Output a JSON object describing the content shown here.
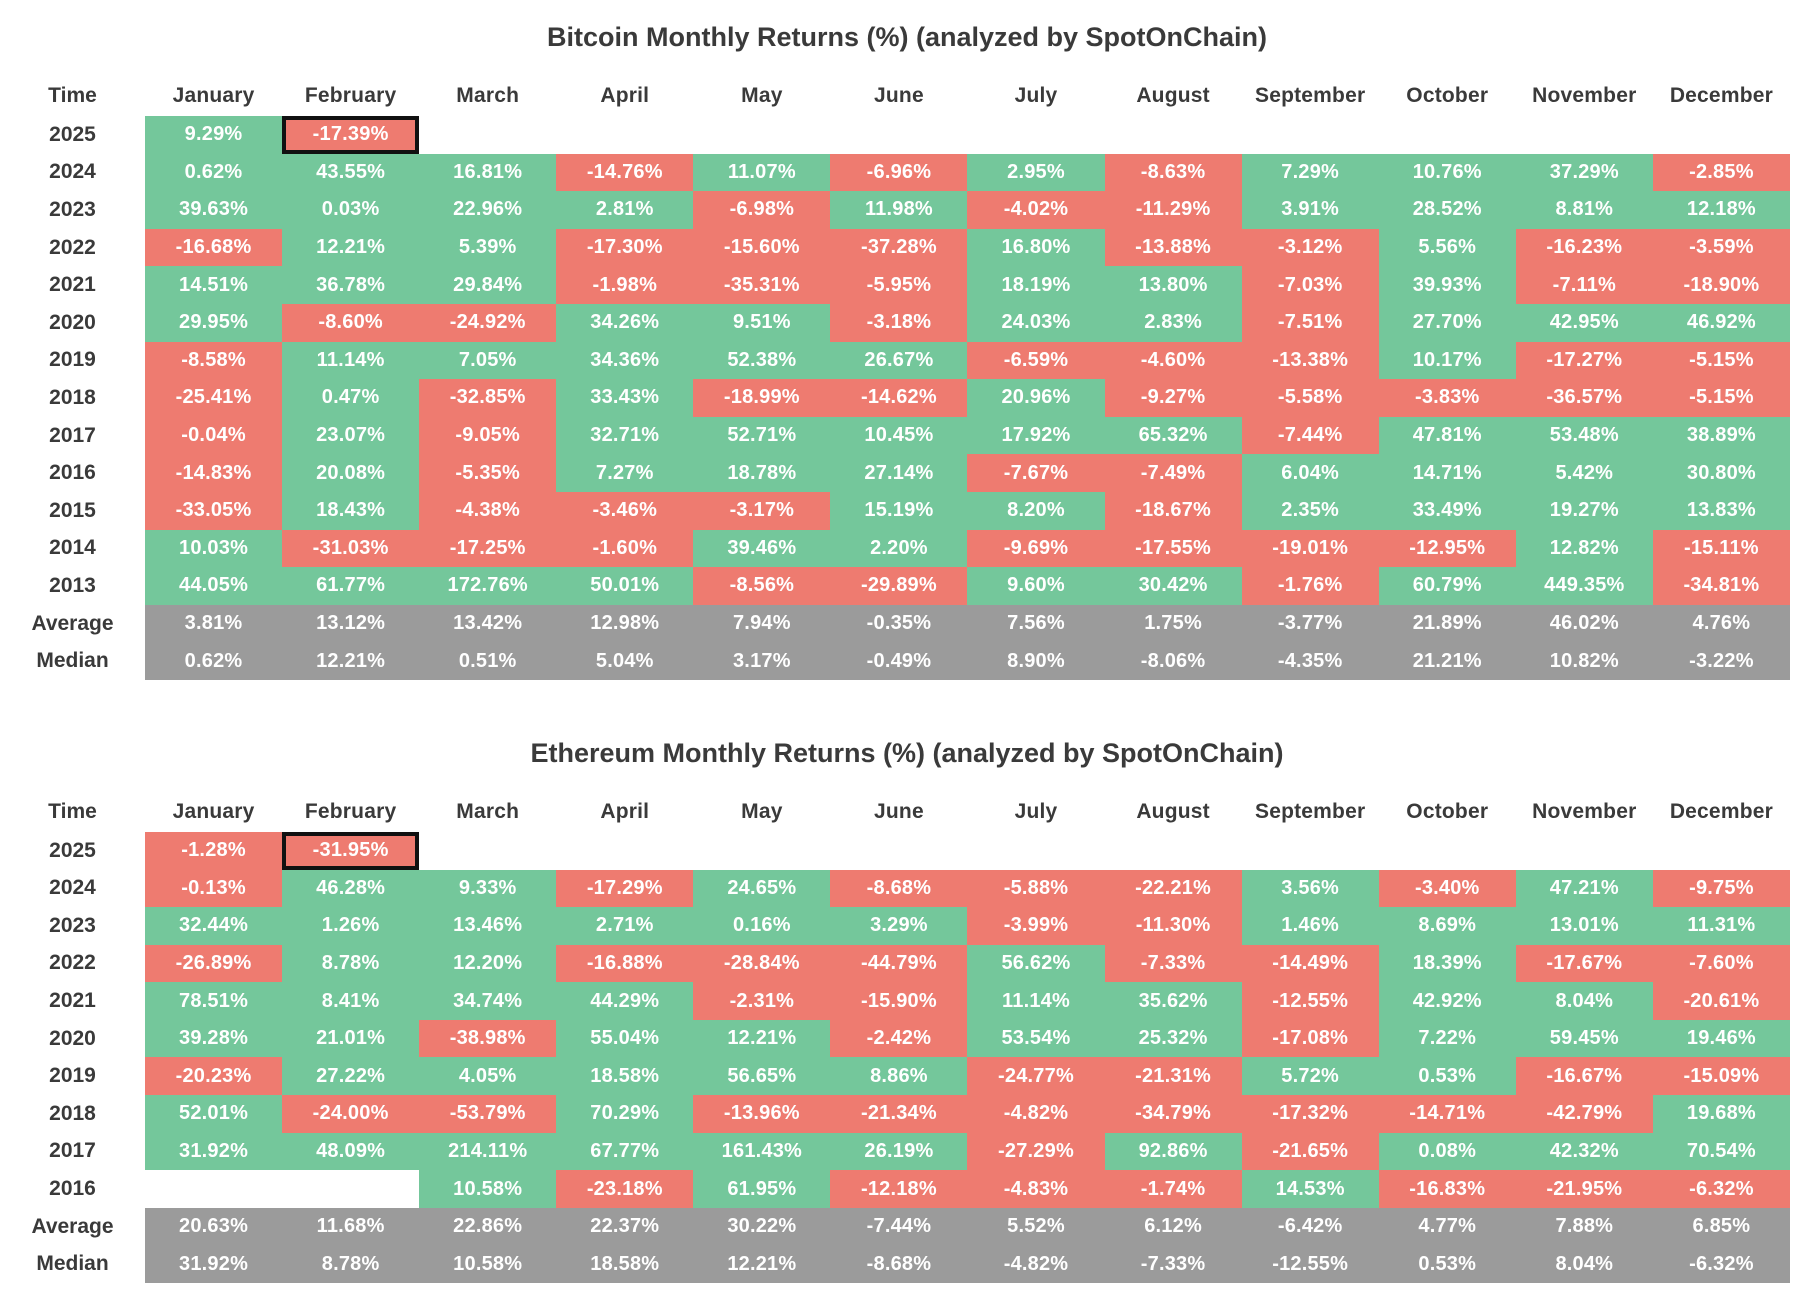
{
  "colors": {
    "positive": "#74C79B",
    "negative": "#EE7B70",
    "summary_bg": "#9B9B9B",
    "highlight_border": "#111111",
    "text_dark": "#3A3A3A",
    "text_light": "#FFFFFF"
  },
  "chart_data": [
    {
      "type": "heatmap",
      "title": "Bitcoin Monthly Returns (%) (analyzed by SpotOnChain)",
      "row_header": "Time",
      "columns": [
        "January",
        "February",
        "March",
        "April",
        "May",
        "June",
        "July",
        "August",
        "September",
        "October",
        "November",
        "December"
      ],
      "rows": [
        "2025",
        "2024",
        "2023",
        "2022",
        "2021",
        "2020",
        "2019",
        "2018",
        "2017",
        "2016",
        "2015",
        "2014",
        "2013",
        "Average",
        "Median"
      ],
      "summary_rows": [
        "Average",
        "Median"
      ],
      "highlight_cells": [
        {
          "row": "2025",
          "col": "February"
        }
      ],
      "unit": "%",
      "values": [
        [
          9.29,
          -17.39,
          null,
          null,
          null,
          null,
          null,
          null,
          null,
          null,
          null,
          null
        ],
        [
          0.62,
          43.55,
          16.81,
          -14.76,
          11.07,
          -6.96,
          2.95,
          -8.63,
          7.29,
          10.76,
          37.29,
          -2.85
        ],
        [
          39.63,
          0.03,
          22.96,
          2.81,
          -6.98,
          11.98,
          -4.02,
          -11.29,
          3.91,
          28.52,
          8.81,
          12.18
        ],
        [
          -16.68,
          12.21,
          5.39,
          -17.3,
          -15.6,
          -37.28,
          16.8,
          -13.88,
          -3.12,
          5.56,
          -16.23,
          -3.59
        ],
        [
          14.51,
          36.78,
          29.84,
          -1.98,
          -35.31,
          -5.95,
          18.19,
          13.8,
          -7.03,
          39.93,
          -7.11,
          -18.9
        ],
        [
          29.95,
          -8.6,
          -24.92,
          34.26,
          9.51,
          -3.18,
          24.03,
          2.83,
          -7.51,
          27.7,
          42.95,
          46.92
        ],
        [
          -8.58,
          11.14,
          7.05,
          34.36,
          52.38,
          26.67,
          -6.59,
          -4.6,
          -13.38,
          10.17,
          -17.27,
          -5.15
        ],
        [
          -25.41,
          0.47,
          -32.85,
          33.43,
          -18.99,
          -14.62,
          20.96,
          -9.27,
          -5.58,
          -3.83,
          -36.57,
          -5.15
        ],
        [
          -0.04,
          23.07,
          -9.05,
          32.71,
          52.71,
          10.45,
          17.92,
          65.32,
          -7.44,
          47.81,
          53.48,
          38.89
        ],
        [
          -14.83,
          20.08,
          -5.35,
          7.27,
          18.78,
          27.14,
          -7.67,
          -7.49,
          6.04,
          14.71,
          5.42,
          30.8
        ],
        [
          -33.05,
          18.43,
          -4.38,
          -3.46,
          -3.17,
          15.19,
          8.2,
          -18.67,
          2.35,
          33.49,
          19.27,
          13.83
        ],
        [
          10.03,
          -31.03,
          -17.25,
          -1.6,
          39.46,
          2.2,
          -9.69,
          -17.55,
          -19.01,
          -12.95,
          12.82,
          -15.11
        ],
        [
          44.05,
          61.77,
          172.76,
          50.01,
          -8.56,
          -29.89,
          9.6,
          30.42,
          -1.76,
          60.79,
          449.35,
          -34.81
        ],
        [
          3.81,
          13.12,
          13.42,
          12.98,
          7.94,
          -0.35,
          7.56,
          1.75,
          -3.77,
          21.89,
          46.02,
          4.76
        ],
        [
          0.62,
          12.21,
          0.51,
          5.04,
          3.17,
          -0.49,
          8.9,
          -8.06,
          -4.35,
          21.21,
          10.82,
          -3.22
        ]
      ]
    },
    {
      "type": "heatmap",
      "title": "Ethereum Monthly Returns (%) (analyzed by SpotOnChain)",
      "row_header": "Time",
      "columns": [
        "January",
        "February",
        "March",
        "April",
        "May",
        "June",
        "July",
        "August",
        "September",
        "October",
        "November",
        "December"
      ],
      "rows": [
        "2025",
        "2024",
        "2023",
        "2022",
        "2021",
        "2020",
        "2019",
        "2018",
        "2017",
        "2016",
        "Average",
        "Median"
      ],
      "summary_rows": [
        "Average",
        "Median"
      ],
      "highlight_cells": [
        {
          "row": "2025",
          "col": "February"
        }
      ],
      "unit": "%",
      "values": [
        [
          -1.28,
          -31.95,
          null,
          null,
          null,
          null,
          null,
          null,
          null,
          null,
          null,
          null
        ],
        [
          -0.13,
          46.28,
          9.33,
          -17.29,
          24.65,
          -8.68,
          -5.88,
          -22.21,
          3.56,
          -3.4,
          47.21,
          -9.75
        ],
        [
          32.44,
          1.26,
          13.46,
          2.71,
          0.16,
          3.29,
          -3.99,
          -11.3,
          1.46,
          8.69,
          13.01,
          11.31
        ],
        [
          -26.89,
          8.78,
          12.2,
          -16.88,
          -28.84,
          -44.79,
          56.62,
          -7.33,
          -14.49,
          18.39,
          -17.67,
          -7.6
        ],
        [
          78.51,
          8.41,
          34.74,
          44.29,
          -2.31,
          -15.9,
          11.14,
          35.62,
          -12.55,
          42.92,
          8.04,
          -20.61
        ],
        [
          39.28,
          21.01,
          -38.98,
          55.04,
          12.21,
          -2.42,
          53.54,
          25.32,
          -17.08,
          7.22,
          59.45,
          19.46
        ],
        [
          -20.23,
          27.22,
          4.05,
          18.58,
          56.65,
          8.86,
          -24.77,
          -21.31,
          5.72,
          0.53,
          -16.67,
          -15.09
        ],
        [
          52.01,
          -24.0,
          -53.79,
          70.29,
          -13.96,
          -21.34,
          -4.82,
          -34.79,
          -17.32,
          -14.71,
          -42.79,
          19.68
        ],
        [
          31.92,
          48.09,
          214.11,
          67.77,
          161.43,
          26.19,
          -27.29,
          92.86,
          -21.65,
          0.08,
          42.32,
          70.54
        ],
        [
          null,
          null,
          10.58,
          -23.18,
          61.95,
          -12.18,
          -4.83,
          -1.74,
          14.53,
          -16.83,
          -21.95,
          -6.32
        ],
        [
          20.63,
          11.68,
          22.86,
          22.37,
          30.22,
          -7.44,
          5.52,
          6.12,
          -6.42,
          4.77,
          7.88,
          6.85
        ],
        [
          31.92,
          8.78,
          10.58,
          18.58,
          12.21,
          -8.68,
          -4.82,
          -7.33,
          -12.55,
          0.53,
          8.04,
          -6.32
        ]
      ]
    }
  ]
}
